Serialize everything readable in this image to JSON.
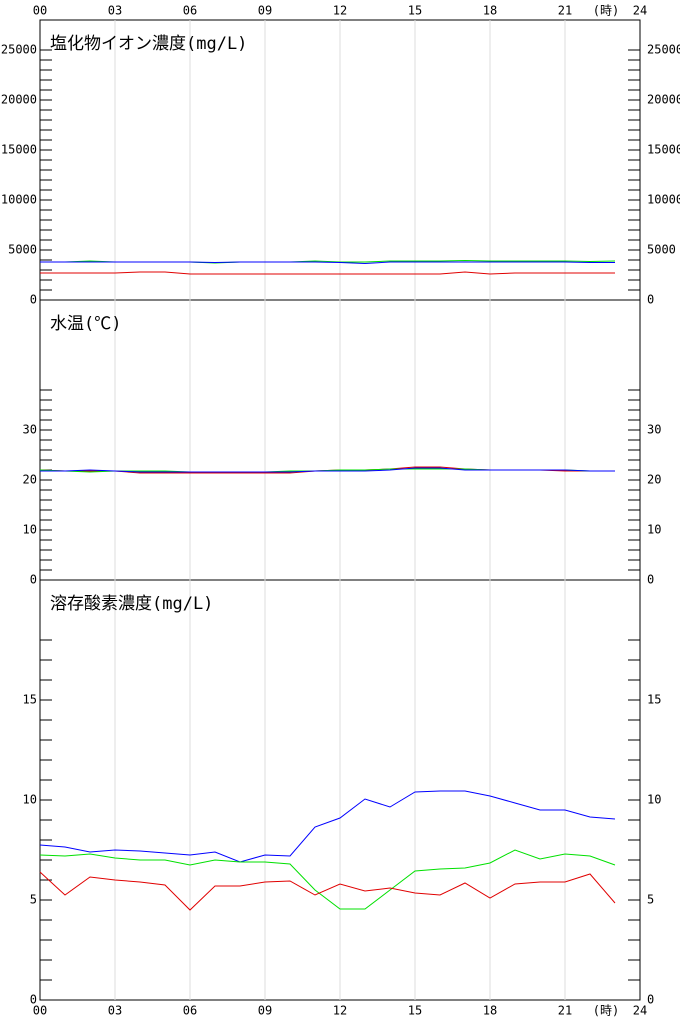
{
  "chart_data": [
    {
      "type": "line",
      "title": "塩化物イオン濃度(mg/L)",
      "x_unit": "(時)",
      "x": [
        0,
        1,
        2,
        3,
        4,
        5,
        6,
        7,
        8,
        9,
        10,
        11,
        12,
        13,
        14,
        15,
        16,
        17,
        18,
        19,
        20,
        21,
        22,
        23
      ],
      "xlim": [
        0,
        24
      ],
      "xticks": [
        {
          "value": 0,
          "label": "00"
        },
        {
          "value": 3,
          "label": "03"
        },
        {
          "value": 6,
          "label": "06"
        },
        {
          "value": 9,
          "label": "09"
        },
        12,
        15,
        18,
        21,
        24
      ],
      "ylim": [
        0,
        28000
      ],
      "yticks": [
        0,
        5000,
        10000,
        15000,
        20000,
        25000
      ],
      "minor_yticks": [
        1000,
        2000,
        3000,
        4000,
        6000,
        7000,
        8000,
        9000,
        11000,
        12000,
        13000,
        14000,
        16000,
        17000,
        18000,
        19000,
        21000,
        22000,
        23000,
        24000
      ],
      "series": [
        {
          "color": "#e00000",
          "values": [
            2700,
            2700,
            2700,
            2700,
            2800,
            2800,
            2600,
            2600,
            2600,
            2600,
            2600,
            2600,
            2600,
            2600,
            2600,
            2600,
            2600,
            2800,
            2600,
            2700,
            2700,
            2700,
            2700,
            2700
          ]
        },
        {
          "color": "#00e000",
          "values": [
            3800,
            3800,
            3900,
            3800,
            3800,
            3800,
            3800,
            3700,
            3800,
            3800,
            3800,
            3900,
            3800,
            3800,
            3900,
            3900,
            3900,
            3950,
            3900,
            3900,
            3900,
            3900,
            3850,
            3900
          ]
        },
        {
          "color": "#0000ff",
          "values": [
            3800,
            3800,
            3800,
            3800,
            3800,
            3800,
            3800,
            3750,
            3800,
            3800,
            3800,
            3800,
            3750,
            3650,
            3800,
            3800,
            3800,
            3800,
            3800,
            3800,
            3800,
            3800,
            3750,
            3750
          ]
        }
      ]
    },
    {
      "type": "line",
      "title": "水温(℃)",
      "x": [
        0,
        1,
        2,
        3,
        4,
        5,
        6,
        7,
        8,
        9,
        10,
        11,
        12,
        13,
        14,
        15,
        16,
        17,
        18,
        19,
        20,
        21,
        22,
        23
      ],
      "xlim": [
        0,
        24
      ],
      "xticks": [
        0,
        3,
        6,
        9,
        12,
        15,
        18,
        21,
        24
      ],
      "ylim": [
        0,
        56
      ],
      "yticks": [
        0,
        10,
        20,
        30
      ],
      "minor_yticks": [
        2,
        4,
        6,
        8,
        12,
        14,
        16,
        18,
        22,
        24,
        26,
        28,
        32,
        34,
        36,
        38
      ],
      "series": [
        {
          "color": "#e00000",
          "values": [
            22,
            21.8,
            21.8,
            21.8,
            21.4,
            21.4,
            21.4,
            21.4,
            21.4,
            21.4,
            21.4,
            21.8,
            22,
            22,
            22.2,
            22.6,
            22.6,
            22.2,
            22,
            22,
            22,
            21.8,
            21.8,
            21.8
          ]
        },
        {
          "color": "#00e000",
          "values": [
            22,
            21.8,
            21.6,
            21.8,
            21.8,
            21.8,
            21.6,
            21.6,
            21.6,
            21.6,
            21.8,
            21.8,
            22,
            22,
            22.2,
            22.2,
            22.2,
            22.2,
            22,
            22,
            22,
            22,
            21.8,
            21.8
          ]
        },
        {
          "color": "#0000ff",
          "values": [
            21.8,
            21.8,
            22,
            21.8,
            21.6,
            21.6,
            21.6,
            21.6,
            21.6,
            21.6,
            21.6,
            21.8,
            21.8,
            21.8,
            22,
            22.4,
            22.4,
            22,
            22,
            22,
            22,
            22,
            21.8,
            21.8
          ]
        }
      ]
    },
    {
      "type": "line",
      "title": "溶存酸素濃度(mg/L)",
      "x_unit": "(時)",
      "x": [
        0,
        1,
        2,
        3,
        4,
        5,
        6,
        7,
        8,
        9,
        10,
        11,
        12,
        13,
        14,
        15,
        16,
        17,
        18,
        19,
        20,
        21,
        22,
        23
      ],
      "xlim": [
        0,
        24
      ],
      "xticks": [
        {
          "value": 0,
          "label": "00"
        },
        {
          "value": 3,
          "label": "03"
        },
        {
          "value": 6,
          "label": "06"
        },
        {
          "value": 9,
          "label": "09"
        },
        12,
        15,
        18,
        21,
        24
      ],
      "ylim": [
        0,
        21
      ],
      "yticks": [
        0,
        5,
        10,
        15
      ],
      "minor_yticks": [
        1,
        2,
        3,
        4,
        6,
        7,
        8,
        9,
        11,
        12,
        13,
        14,
        16,
        17,
        18
      ],
      "series": [
        {
          "color": "#0000ff",
          "values": [
            7.75,
            7.65,
            7.4,
            7.5,
            7.45,
            7.35,
            7.25,
            7.4,
            6.9,
            7.25,
            7.2,
            8.65,
            9.1,
            10.05,
            9.65,
            10.4,
            10.45,
            10.45,
            10.2,
            9.85,
            9.5,
            9.5,
            9.15,
            9.05
          ]
        },
        {
          "color": "#00e000",
          "values": [
            7.25,
            7.2,
            7.3,
            7.1,
            7.0,
            7.0,
            6.75,
            7.0,
            6.9,
            6.9,
            6.8,
            5.5,
            4.55,
            4.55,
            5.5,
            6.45,
            6.55,
            6.6,
            6.85,
            7.5,
            7.05,
            7.3,
            7.2,
            6.75
          ]
        },
        {
          "color": "#e00000",
          "values": [
            6.4,
            5.25,
            6.15,
            6.0,
            5.9,
            5.75,
            4.5,
            5.7,
            5.7,
            5.9,
            5.95,
            5.25,
            5.8,
            5.45,
            5.6,
            5.35,
            5.25,
            5.85,
            5.1,
            5.8,
            5.9,
            5.9,
            6.3,
            4.85
          ]
        }
      ]
    }
  ]
}
